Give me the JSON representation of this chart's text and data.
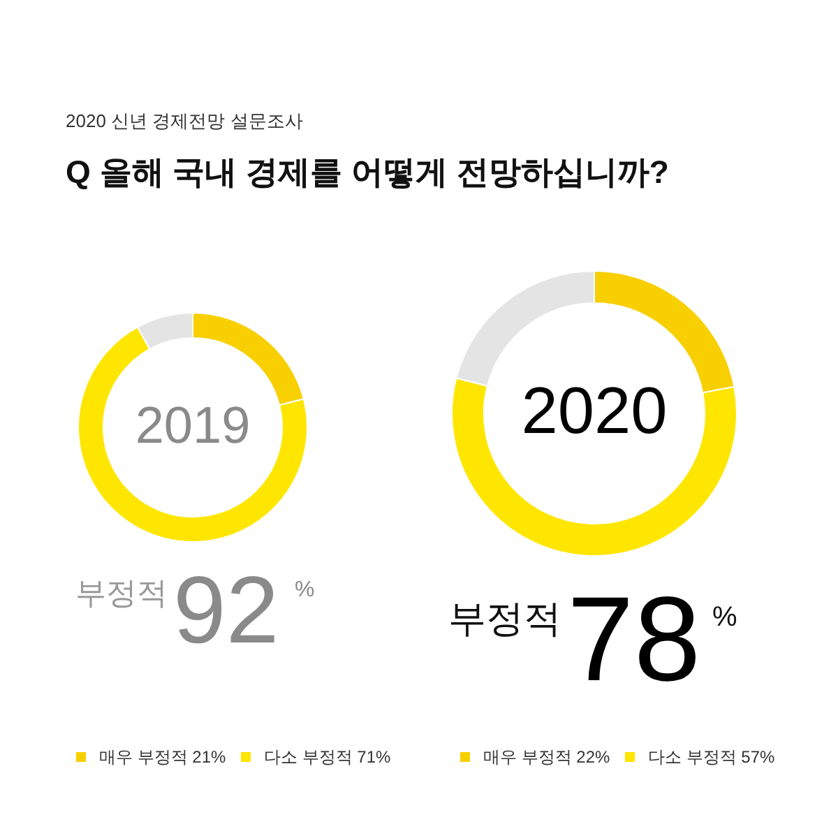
{
  "chart_data": [
    {
      "type": "other",
      "subtitle": "2020 신년 경제전망 설문조사",
      "title": "Q 올해 국내 경제를 어떻게 전망하십니까?"
    },
    {
      "type": "donut",
      "title": "2019",
      "categories": [
        "매우 부정적",
        "다소 부정적",
        null
      ],
      "values": [
        21,
        71,
        8
      ],
      "colors": [
        "#f8cf00",
        "#ffe600",
        "#e4e4e4"
      ],
      "value_labels": [
        "21%",
        "71%",
        null
      ],
      "annotations": [
        "부정적",
        "92",
        "%"
      ],
      "legend": "bottom"
    },
    {
      "type": "donut",
      "title": "2020",
      "categories": [
        "매우 부정적",
        "다소 부정적",
        null
      ],
      "values": [
        22,
        57,
        21
      ],
      "colors": [
        "#f8cf00",
        "#ffe600",
        "#e4e4e4"
      ],
      "value_labels": [
        "22%",
        "57%",
        null
      ],
      "annotations": [
        "부정적",
        "78",
        "%"
      ],
      "legend": "bottom"
    }
  ]
}
